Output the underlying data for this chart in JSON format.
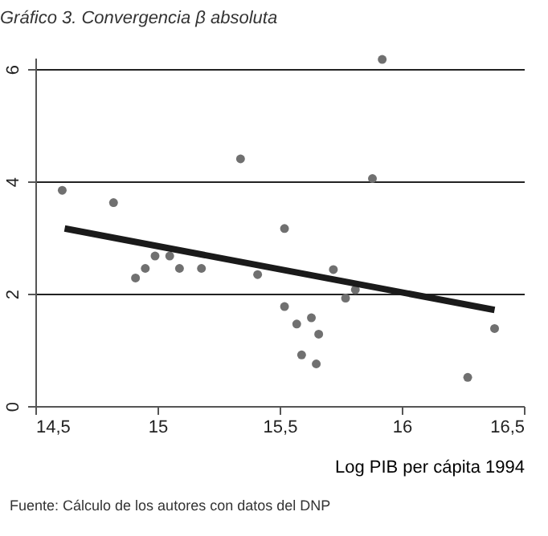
{
  "chart_data": {
    "type": "scatter",
    "title": "Gráfico 3. Convergencia β absoluta",
    "xlabel": "Log PIB per cápita 1994",
    "annotations": [
      "Fuente: Cálculo de los autores con datos del DNP"
    ],
    "series": [
      {
        "color": "#707070",
        "marker": "circle",
        "x": [
          14.61,
          14.82,
          14.91,
          14.95,
          14.99,
          15.05,
          15.09,
          15.18,
          15.34,
          15.41,
          15.52,
          15.52,
          15.57,
          15.59,
          15.63,
          15.65,
          15.66,
          15.72,
          15.77,
          15.81,
          15.88,
          15.92,
          16.27,
          16.38
        ],
        "values": [
          3.84,
          3.62,
          2.28,
          2.45,
          2.67,
          2.67,
          2.45,
          2.45,
          4.4,
          2.34,
          3.16,
          1.77,
          1.46,
          0.91,
          1.57,
          0.75,
          1.28,
          2.43,
          1.92,
          2.07,
          4.05,
          6.17,
          0.51,
          1.38
        ]
      },
      {
        "type": "line",
        "color": "#1a1a1a",
        "x": [
          14.62,
          16.38
        ],
        "values": [
          3.16,
          1.71
        ]
      }
    ],
    "xlim": [
      14.5,
      16.5
    ],
    "xticks": [
      {
        "value": 14.5,
        "label": "14,5"
      },
      {
        "value": 15,
        "label": "15"
      },
      {
        "value": 15.5,
        "label": "15,5"
      },
      {
        "value": 16,
        "label": "16"
      },
      {
        "value": 16.5,
        "label": "16,5"
      }
    ],
    "ylim": [
      0,
      6.2
    ],
    "yticks": [
      0,
      2,
      4,
      6
    ],
    "grid": "y"
  }
}
